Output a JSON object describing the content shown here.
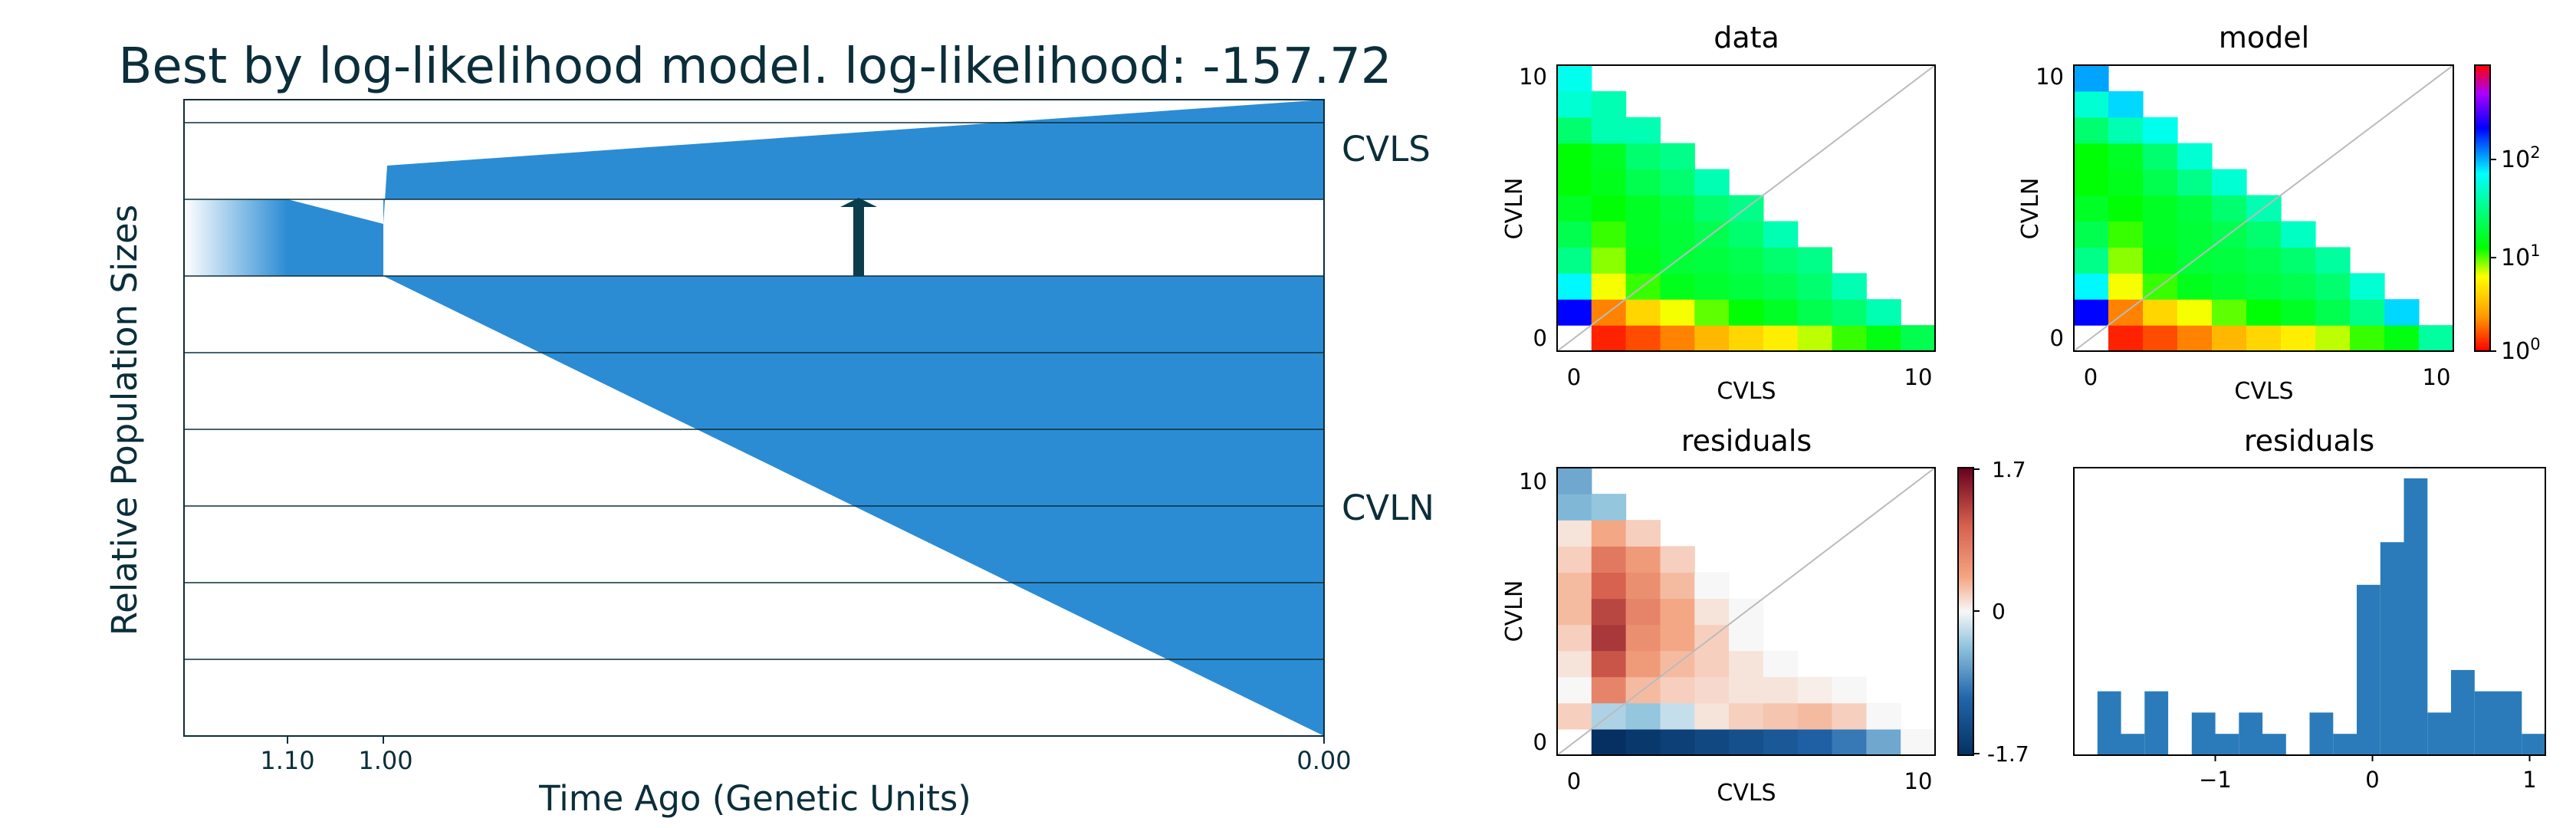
{
  "chart_data": [
    {
      "type": "area",
      "title": "Best by log-likelihood model. log-likelihood: -157.72",
      "xlabel": "Time Ago (Genetic Units)",
      "ylabel": "Relative Population Sizes",
      "x_ticks": [
        "1.10",
        "1.00",
        "0.00"
      ],
      "populations": [
        {
          "name": "CVLS",
          "size_at_split": 0.3,
          "size_present": 1.2
        },
        {
          "name": "CVLN",
          "size_at_split": 0.7,
          "size_present": 6.0
        }
      ],
      "ancestral": {
        "split_time": 1.0,
        "size_change_time": 1.1,
        "size_before": 1.0,
        "size_after": 1.0
      },
      "migration": {
        "from": "CVLN",
        "to": "CVLS",
        "time": 0.5
      },
      "colors": {
        "population": "#2b8cd4",
        "arrow": "#0b3d4c",
        "text": "#0b2e3a"
      }
    },
    {
      "type": "heatmap",
      "title": "data",
      "xlabel": "CVLS",
      "ylabel": "CVLN",
      "tick_labels": [
        "0",
        "10"
      ],
      "size": 11,
      "scale": "log",
      "values": [
        [
          0,
          3,
          1.5,
          1.2,
          0.9,
          1,
          0.8,
          1,
          1.5,
          3,
          6
        ],
        [
          800,
          1.2,
          1.5,
          2,
          3,
          4,
          5,
          7,
          10,
          13,
          20
        ],
        [
          200,
          2,
          4,
          6,
          9,
          12,
          15,
          20,
          25,
          40
        ],
        [
          70,
          6,
          10,
          14,
          16,
          18,
          20,
          25,
          40
        ],
        [
          30,
          8,
          14,
          17,
          18,
          20,
          25,
          30
        ],
        [
          20,
          10,
          15,
          17,
          20,
          25,
          40
        ],
        [
          15,
          12,
          15,
          18,
          25,
          30
        ],
        [
          12,
          14,
          20,
          25,
          40
        ],
        [
          12,
          15,
          25,
          30
        ],
        [
          25,
          40,
          40
        ],
        [
          50,
          40
        ],
        [
          60
        ]
      ]
    },
    {
      "type": "heatmap",
      "title": "model",
      "xlabel": "CVLS",
      "ylabel": "CVLN",
      "tick_labels": [
        "0",
        "10"
      ],
      "size": 11,
      "scale": "log",
      "colorbar": {
        "ticks": [
          "10^0",
          "10^1",
          "10^2"
        ],
        "min": 1,
        "max": 900
      },
      "values": [
        [
          0,
          3,
          1.5,
          1.2,
          0.9,
          1,
          0.8,
          1,
          1.5,
          3,
          6
        ],
        [
          800,
          1.2,
          1.5,
          2,
          3,
          4,
          5,
          7,
          10,
          13,
          35
        ],
        [
          200,
          2,
          4,
          6,
          9,
          12,
          15,
          20,
          30,
          80
        ],
        [
          70,
          6,
          10,
          14,
          16,
          18,
          20,
          25,
          50
        ],
        [
          30,
          8,
          14,
          17,
          18,
          20,
          25,
          35
        ],
        [
          20,
          10,
          15,
          17,
          20,
          25,
          45
        ],
        [
          15,
          12,
          15,
          18,
          25,
          40
        ],
        [
          12,
          14,
          20,
          30,
          50
        ],
        [
          12,
          15,
          25,
          50
        ],
        [
          25,
          40,
          60
        ],
        [
          50,
          80
        ],
        [
          100
        ]
      ]
    },
    {
      "type": "heatmap",
      "title": "residuals",
      "xlabel": "CVLS",
      "ylabel": "CVLN",
      "tick_labels": [
        "0",
        "10"
      ],
      "size": 11,
      "scale": "linear",
      "colorbar": {
        "ticks": [
          "1.7",
          "0",
          "-1.7"
        ],
        "min": -1.7,
        "max": 1.7
      },
      "values": [
        [
          0,
          -0.3,
          0.1,
          0.1,
          0.05,
          0,
          0.05,
          0,
          -0.1,
          -0.4,
          -0.9
        ],
        [
          0.5,
          -1.7,
          -1.6,
          -1.5,
          -1.4,
          -1.3,
          -1.2,
          -1.1,
          -0.9,
          -0.6,
          0
        ],
        [
          0.2,
          -0.3,
          -0.4,
          -0.2,
          0.1,
          0.2,
          0.25,
          0.3,
          0.2,
          0
        ],
        [
          0,
          0.7,
          0.3,
          0.2,
          0.15,
          0.1,
          0.1,
          0.05,
          0
        ],
        [
          0.1,
          1.1,
          0.5,
          0.3,
          0.2,
          0.1,
          0
        ],
        [
          0.2,
          1.3,
          0.6,
          0.4,
          0.2,
          0
        ],
        [
          0.3,
          1.2,
          0.7,
          0.4,
          0.1,
          0
        ],
        [
          0.3,
          1.0,
          0.6,
          0.3,
          0
        ],
        [
          0.2,
          0.8,
          0.5,
          0.2,
          0
        ],
        [
          0.1,
          0.4,
          0.2,
          0
        ],
        [
          -0.5,
          -0.4
        ],
        [
          -0.6
        ]
      ]
    },
    {
      "type": "bar",
      "title": "residuals",
      "xlabel": "",
      "ylabel": "",
      "x_ticks": [
        "-1",
        "0",
        "1"
      ],
      "bins": [
        -1.75,
        -1.6,
        -1.45,
        -1.3,
        -1.15,
        -1.0,
        -0.85,
        -0.7,
        -0.55,
        -0.4,
        -0.25,
        -0.1,
        0.05,
        0.2,
        0.35,
        0.5,
        0.65,
        0.8,
        0.95
      ],
      "bin_width": 0.15,
      "values": [
        3,
        1,
        3,
        0,
        2,
        1,
        2,
        1,
        0,
        2,
        1,
        8,
        10,
        13,
        2,
        4,
        3,
        3,
        1
      ],
      "xlim": [
        -1.9,
        1.1
      ],
      "ylim": [
        0,
        13.5
      ]
    }
  ]
}
